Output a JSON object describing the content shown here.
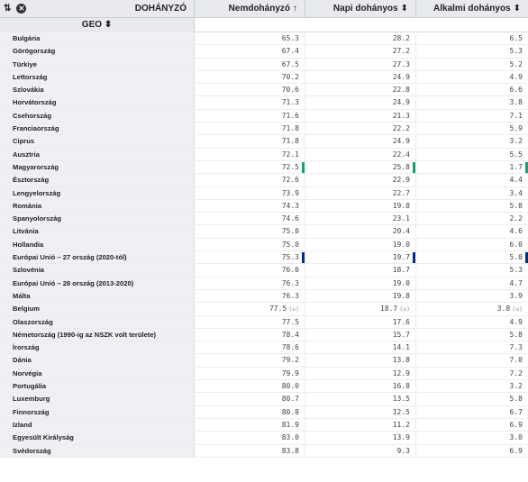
{
  "header": {
    "corner_label": "DOHÁNYZÓ",
    "columns": [
      "Nemdohányzó",
      "Napi dohányos",
      "Alkalmi dohányos"
    ],
    "column_arrows": [
      "↑",
      "⬍",
      "⬍"
    ],
    "geo_label": "GEO"
  },
  "rows": [
    {
      "geo": "Bulgária",
      "v": [
        "65.3",
        "28.2",
        "6.5"
      ]
    },
    {
      "geo": "Görögország",
      "v": [
        "67.4",
        "27.2",
        "5.3"
      ]
    },
    {
      "geo": "Türkiye",
      "v": [
        "67.5",
        "27.3",
        "5.2"
      ]
    },
    {
      "geo": "Lettország",
      "v": [
        "70.2",
        "24.9",
        "4.9"
      ]
    },
    {
      "geo": "Szlovákia",
      "v": [
        "70.6",
        "22.8",
        "6.6"
      ]
    },
    {
      "geo": "Horvátország",
      "v": [
        "71.3",
        "24.9",
        "3.8"
      ]
    },
    {
      "geo": "Csehország",
      "v": [
        "71.6",
        "21.3",
        "7.1"
      ]
    },
    {
      "geo": "Franciaország",
      "v": [
        "71.8",
        "22.2",
        "5.9"
      ]
    },
    {
      "geo": "Ciprus",
      "v": [
        "71.8",
        "24.9",
        "3.2"
      ]
    },
    {
      "geo": "Ausztria",
      "v": [
        "72.1",
        "22.4",
        "5.5"
      ]
    },
    {
      "geo": "Magyarország",
      "v": [
        "72.5",
        "25.8",
        "1.7"
      ],
      "mark": "green"
    },
    {
      "geo": "Észtország",
      "v": [
        "72.6",
        "22.9",
        "4.4"
      ]
    },
    {
      "geo": "Lengyelország",
      "v": [
        "73.9",
        "22.7",
        "3.4"
      ]
    },
    {
      "geo": "Románia",
      "v": [
        "74.3",
        "19.8",
        "5.8"
      ]
    },
    {
      "geo": "Spanyolország",
      "v": [
        "74.6",
        "23.1",
        "2.2"
      ]
    },
    {
      "geo": "Litvánia",
      "v": [
        "75.0",
        "20.4",
        "4.6"
      ]
    },
    {
      "geo": "Hollandia",
      "v": [
        "75.0",
        "19.0",
        "6.0"
      ]
    },
    {
      "geo": "Európai Unió – 27 ország (2020-tól)",
      "v": [
        "75.3",
        "19.7",
        "5.0"
      ],
      "mark": "blue"
    },
    {
      "geo": "Szlovénia",
      "v": [
        "76.0",
        "18.7",
        "5.3"
      ]
    },
    {
      "geo": "Európai Unió – 28 ország (2013-2020)",
      "v": [
        "76.3",
        "19.0",
        "4.7"
      ]
    },
    {
      "geo": "Málta",
      "v": [
        "76.3",
        "19.8",
        "3.9"
      ]
    },
    {
      "geo": "Belgium",
      "v": [
        "77.5",
        "18.7",
        "3.8"
      ],
      "flag": "(u)"
    },
    {
      "geo": "Olaszország",
      "v": [
        "77.5",
        "17.6",
        "4.9"
      ]
    },
    {
      "geo": "Németország (1990-ig az NSZK volt területe)",
      "v": [
        "78.4",
        "15.7",
        "5.8"
      ]
    },
    {
      "geo": "Írország",
      "v": [
        "78.6",
        "14.1",
        "7.3"
      ]
    },
    {
      "geo": "Dánia",
      "v": [
        "79.2",
        "13.8",
        "7.0"
      ]
    },
    {
      "geo": "Norvégia",
      "v": [
        "79.9",
        "12.9",
        "7.2"
      ]
    },
    {
      "geo": "Portugália",
      "v": [
        "80.0",
        "16.8",
        "3.2"
      ]
    },
    {
      "geo": "Luxemburg",
      "v": [
        "80.7",
        "13.5",
        "5.8"
      ]
    },
    {
      "geo": "Finnország",
      "v": [
        "80.8",
        "12.5",
        "6.7"
      ]
    },
    {
      "geo": "Izland",
      "v": [
        "81.9",
        "11.2",
        "6.9"
      ]
    },
    {
      "geo": "Egyesült Királyság",
      "v": [
        "83.0",
        "13.9",
        "3.0"
      ]
    },
    {
      "geo": "Svédország",
      "v": [
        "83.8",
        "9.3",
        "6.9"
      ]
    }
  ],
  "colors": {
    "green": "#1b9e77",
    "blue": "#0a2a8c"
  }
}
